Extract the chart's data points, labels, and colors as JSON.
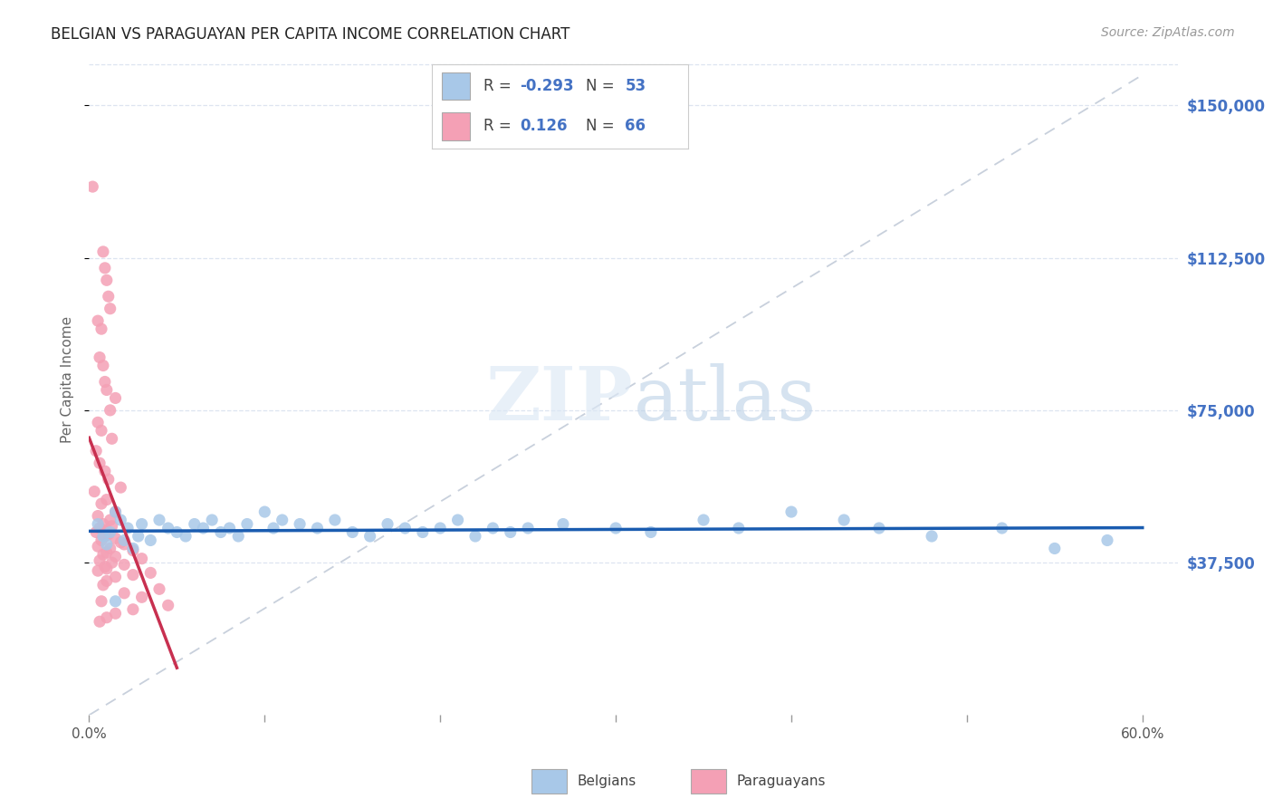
{
  "title": "BELGIAN VS PARAGUAYAN PER CAPITA INCOME CORRELATION CHART",
  "source": "Source: ZipAtlas.com",
  "ylabel": "Per Capita Income",
  "xtick_show": [
    "0.0%",
    "60.0%"
  ],
  "xtick_positions": [
    0.0,
    60.0
  ],
  "xtick_minor_positions": [
    10.0,
    20.0,
    30.0,
    40.0,
    50.0
  ],
  "ytick_labels": [
    "$37,500",
    "$75,000",
    "$112,500",
    "$150,000"
  ],
  "ytick_vals": [
    37500,
    75000,
    112500,
    150000
  ],
  "ylim": [
    0,
    165000
  ],
  "xlim": [
    0.0,
    62.0
  ],
  "belgian_color": "#a8c8e8",
  "paraguayan_color": "#f4a0b5",
  "belgian_trend_color": "#1a5cb0",
  "paraguayan_trend_color": "#c83050",
  "ref_line_color": "#c8d0dc",
  "label1": "Belgians",
  "label2": "Paraguayans",
  "title_color": "#222222",
  "right_tick_color": "#4472c4",
  "background_color": "#ffffff",
  "grid_color": "#dde4f0",
  "belgian_R": -0.293,
  "belgians_N": 53,
  "paraguayan_R": 0.126,
  "paraguayans_N": 66,
  "belgian_points": [
    [
      0.5,
      47000
    ],
    [
      0.8,
      44000
    ],
    [
      1.0,
      42000
    ],
    [
      1.2,
      45000
    ],
    [
      1.5,
      50000
    ],
    [
      1.8,
      48000
    ],
    [
      2.0,
      43000
    ],
    [
      2.2,
      46000
    ],
    [
      2.5,
      41000
    ],
    [
      2.8,
      44000
    ],
    [
      3.0,
      47000
    ],
    [
      3.5,
      43000
    ],
    [
      4.0,
      48000
    ],
    [
      4.5,
      46000
    ],
    [
      5.0,
      45000
    ],
    [
      5.5,
      44000
    ],
    [
      6.0,
      47000
    ],
    [
      6.5,
      46000
    ],
    [
      7.0,
      48000
    ],
    [
      7.5,
      45000
    ],
    [
      8.0,
      46000
    ],
    [
      8.5,
      44000
    ],
    [
      9.0,
      47000
    ],
    [
      10.0,
      50000
    ],
    [
      10.5,
      46000
    ],
    [
      11.0,
      48000
    ],
    [
      12.0,
      47000
    ],
    [
      13.0,
      46000
    ],
    [
      14.0,
      48000
    ],
    [
      15.0,
      45000
    ],
    [
      16.0,
      44000
    ],
    [
      17.0,
      47000
    ],
    [
      18.0,
      46000
    ],
    [
      19.0,
      45000
    ],
    [
      20.0,
      46000
    ],
    [
      21.0,
      48000
    ],
    [
      22.0,
      44000
    ],
    [
      23.0,
      46000
    ],
    [
      24.0,
      45000
    ],
    [
      25.0,
      46000
    ],
    [
      27.0,
      47000
    ],
    [
      30.0,
      46000
    ],
    [
      32.0,
      45000
    ],
    [
      35.0,
      48000
    ],
    [
      37.0,
      46000
    ],
    [
      40.0,
      50000
    ],
    [
      43.0,
      48000
    ],
    [
      45.0,
      46000
    ],
    [
      48.0,
      44000
    ],
    [
      52.0,
      46000
    ],
    [
      55.0,
      41000
    ],
    [
      58.0,
      43000
    ],
    [
      1.5,
      28000
    ]
  ],
  "paraguayan_points": [
    [
      0.2,
      130000
    ],
    [
      0.5,
      97000
    ],
    [
      0.7,
      95000
    ],
    [
      0.8,
      114000
    ],
    [
      0.9,
      110000
    ],
    [
      1.0,
      107000
    ],
    [
      1.1,
      103000
    ],
    [
      1.2,
      100000
    ],
    [
      0.6,
      88000
    ],
    [
      0.8,
      86000
    ],
    [
      0.9,
      82000
    ],
    [
      1.0,
      80000
    ],
    [
      1.5,
      78000
    ],
    [
      1.2,
      75000
    ],
    [
      0.5,
      72000
    ],
    [
      0.7,
      70000
    ],
    [
      1.3,
      68000
    ],
    [
      0.4,
      65000
    ],
    [
      0.6,
      62000
    ],
    [
      0.9,
      60000
    ],
    [
      1.1,
      58000
    ],
    [
      1.8,
      56000
    ],
    [
      0.3,
      55000
    ],
    [
      1.0,
      53000
    ],
    [
      0.7,
      52000
    ],
    [
      1.5,
      50000
    ],
    [
      0.5,
      49000
    ],
    [
      1.2,
      48000
    ],
    [
      0.8,
      47000
    ],
    [
      1.3,
      46500
    ],
    [
      0.6,
      46000
    ],
    [
      1.0,
      45500
    ],
    [
      0.4,
      45000
    ],
    [
      1.1,
      44500
    ],
    [
      0.9,
      44000
    ],
    [
      1.5,
      43500
    ],
    [
      0.7,
      43000
    ],
    [
      1.8,
      42500
    ],
    [
      2.0,
      42000
    ],
    [
      0.5,
      41500
    ],
    [
      1.2,
      41000
    ],
    [
      2.5,
      40500
    ],
    [
      1.0,
      40000
    ],
    [
      0.8,
      39500
    ],
    [
      1.5,
      39000
    ],
    [
      3.0,
      38500
    ],
    [
      0.6,
      38000
    ],
    [
      1.3,
      37500
    ],
    [
      2.0,
      37000
    ],
    [
      0.9,
      36500
    ],
    [
      1.0,
      36000
    ],
    [
      0.5,
      35500
    ],
    [
      3.5,
      35000
    ],
    [
      2.5,
      34500
    ],
    [
      1.5,
      34000
    ],
    [
      1.0,
      33000
    ],
    [
      0.8,
      32000
    ],
    [
      4.0,
      31000
    ],
    [
      2.0,
      30000
    ],
    [
      3.0,
      29000
    ],
    [
      0.7,
      28000
    ],
    [
      4.5,
      27000
    ],
    [
      2.5,
      26000
    ],
    [
      1.5,
      25000
    ],
    [
      1.0,
      24000
    ],
    [
      0.6,
      23000
    ]
  ]
}
